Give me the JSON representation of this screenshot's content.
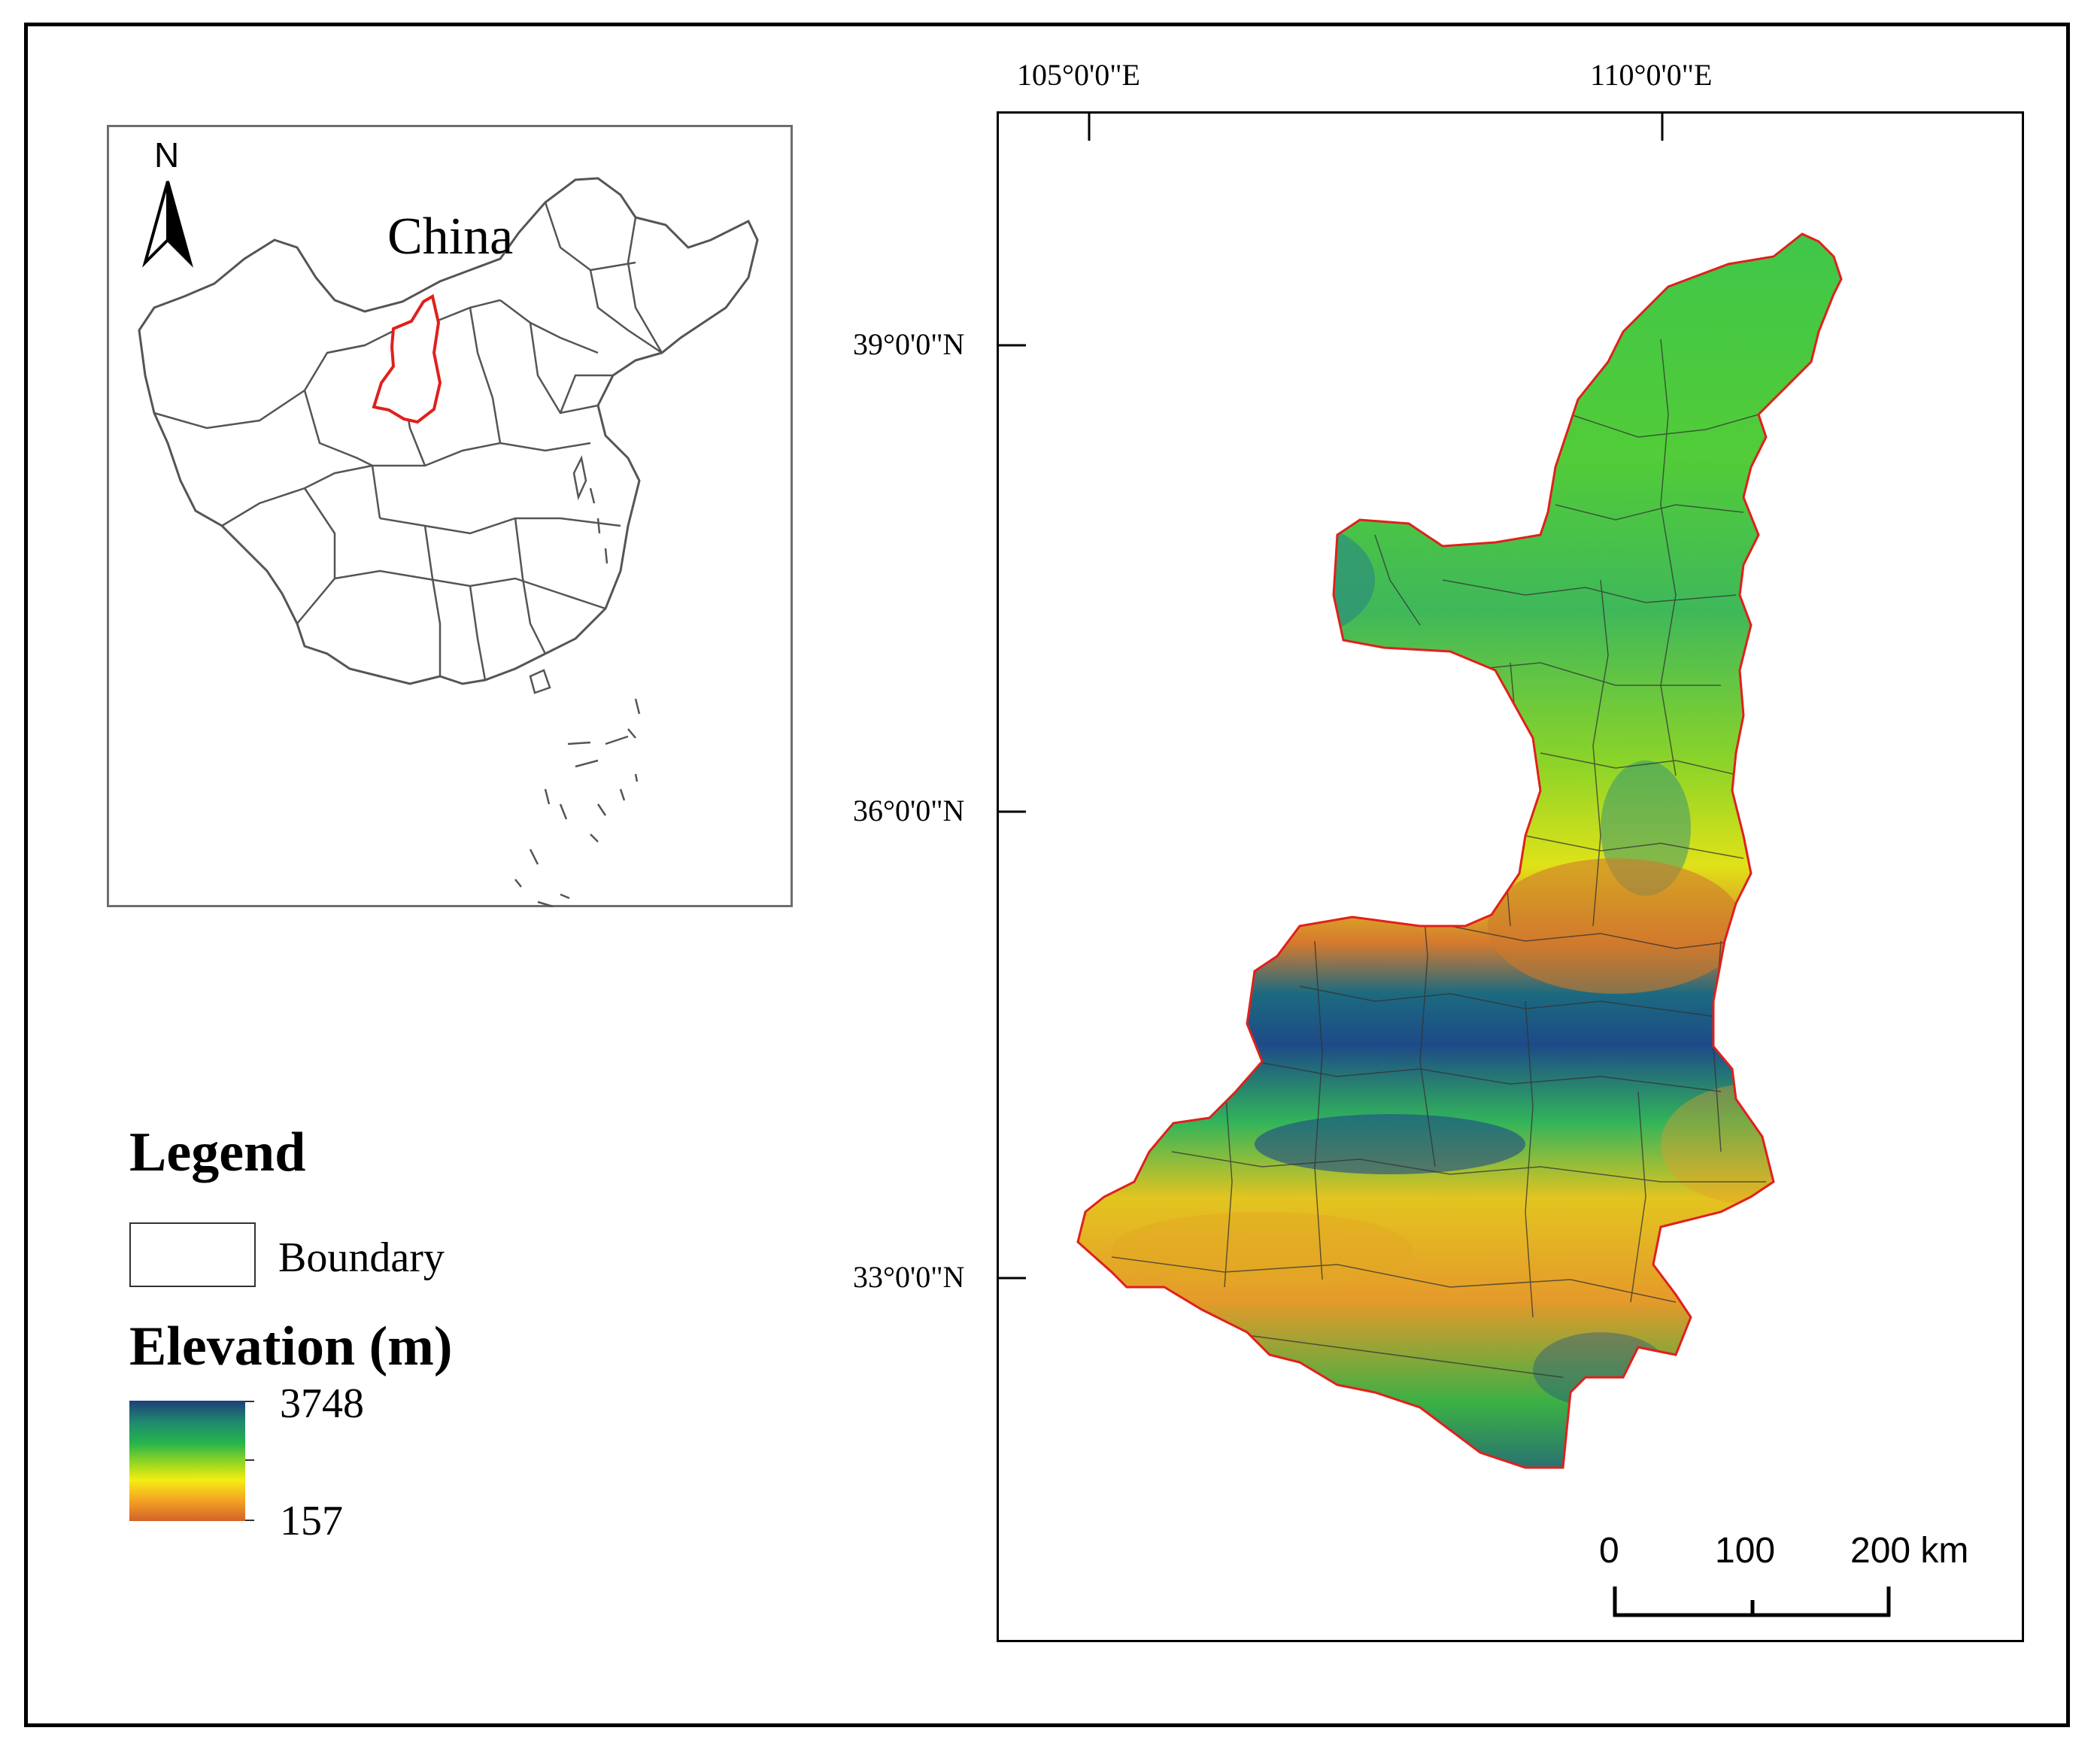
{
  "inset": {
    "north_label": "N",
    "title": "China",
    "highlight_color": "#e0201c",
    "outline_color": "#555555"
  },
  "main_map": {
    "longitude_labels": [
      "105°0'0\"E",
      "110°0'0\"E"
    ],
    "latitude_labels": [
      "39°0'0\"N",
      "36°0'0\"N",
      "33°0'0\"N"
    ],
    "boundary_color": "#e0201c",
    "scale_bar": {
      "labels": [
        "0",
        "100",
        "200 km"
      ]
    }
  },
  "legend": {
    "title": "Legend",
    "boundary_label": "Boundary",
    "elevation_title": "Elevation (m)",
    "elevation_max": "3748",
    "elevation_min": "157",
    "ramp_colors": [
      "#1e3f7a",
      "#1f8a6f",
      "#25b44c",
      "#8ad324",
      "#f4ee12",
      "#f6a623",
      "#d2622a"
    ]
  }
}
